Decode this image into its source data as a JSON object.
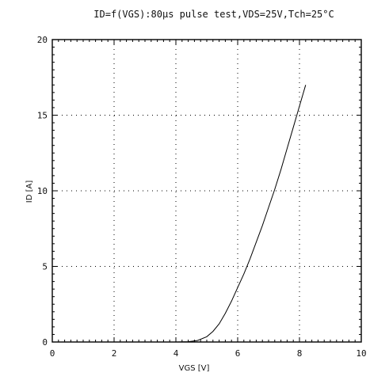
{
  "chart_data": {
    "type": "line",
    "title": "ID=f(VGS):80μs pulse test,VDS=25V,Tch=25°C",
    "xlabel": "VGS [V]",
    "ylabel": "ID [A]",
    "xlim": [
      0,
      10
    ],
    "ylim": [
      0,
      20
    ],
    "x_ticks": [
      "0",
      "2",
      "4",
      "6",
      "8",
      "10"
    ],
    "y_ticks": [
      "0",
      "5",
      "10",
      "15",
      "20"
    ],
    "grid": true,
    "grid_style": "dotted",
    "line_color": "#000000",
    "series": [
      {
        "x": [
          4.0,
          4.4,
          4.7,
          5.0,
          5.2,
          5.4,
          5.6,
          5.8,
          6.0,
          6.2,
          6.4,
          6.6,
          6.8,
          7.0,
          7.2,
          7.4,
          7.6,
          7.8,
          8.0,
          8.2
        ],
        "values": [
          0.0,
          0.02,
          0.1,
          0.35,
          0.7,
          1.2,
          1.9,
          2.7,
          3.6,
          4.5,
          5.5,
          6.6,
          7.7,
          8.9,
          10.1,
          11.4,
          12.8,
          14.2,
          15.6,
          17.0
        ]
      }
    ]
  }
}
